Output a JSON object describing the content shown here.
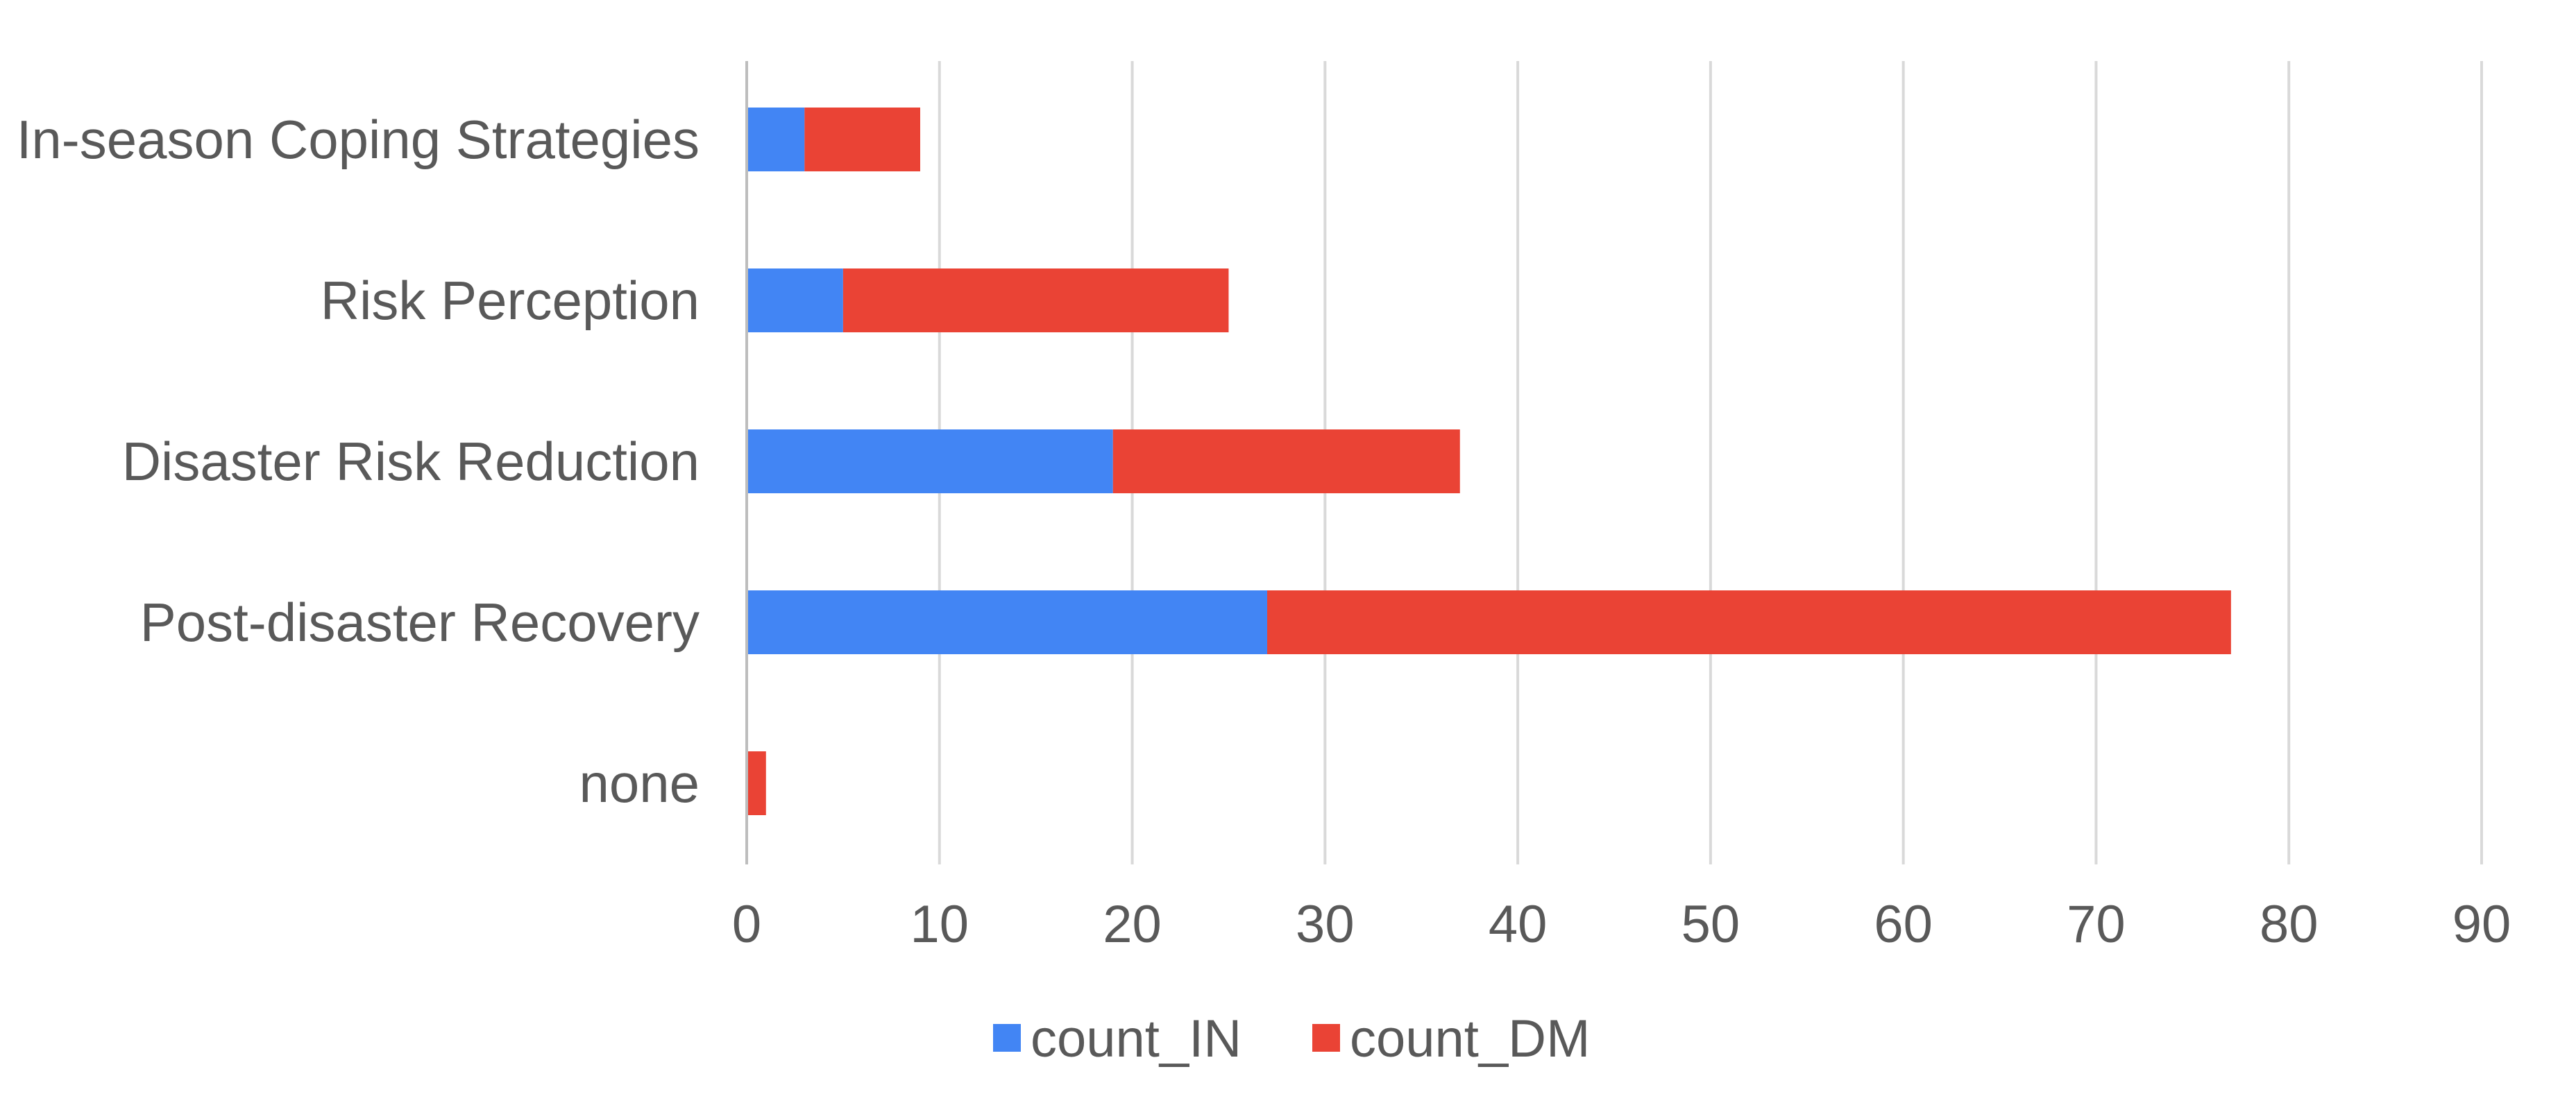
{
  "chart_data": {
    "type": "bar",
    "orientation": "horizontal",
    "stacked": true,
    "title": "",
    "xlabel": "",
    "ylabel": "",
    "categories": [
      "In-season Coping Strategies",
      "Risk Perception",
      "Disaster Risk Reduction",
      "Post-disaster Recovery",
      "none"
    ],
    "series": [
      {
        "name": "count_IN",
        "color": "#4285f4",
        "values": [
          3,
          5,
          19,
          27,
          0
        ]
      },
      {
        "name": "count_DM",
        "color": "#ea4335",
        "values": [
          6,
          20,
          18,
          50,
          1
        ]
      }
    ],
    "xlim": [
      0,
      90
    ],
    "xticks": [
      0,
      10,
      20,
      30,
      40,
      50,
      60,
      70,
      80,
      90
    ],
    "grid": "vertical",
    "legend": "bottom-center"
  }
}
